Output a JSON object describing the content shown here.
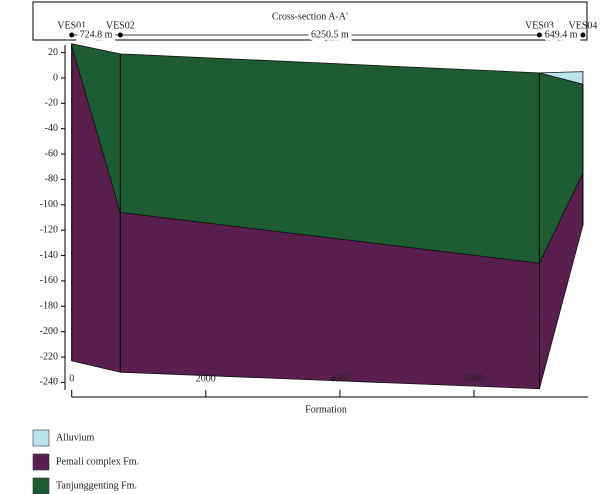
{
  "chart_data": {
    "type": "cross-section",
    "title": "Cross-section A-A′",
    "x_label": "Formation",
    "stations": {
      "names": [
        "VES01",
        "VES02",
        "VES03",
        "VES04"
      ],
      "x": [
        0,
        724.8,
        6975.3,
        7624.7
      ],
      "distances": [
        "724.8 m",
        "6250.5 m",
        "649.4 m"
      ]
    },
    "xlim": [
      -100,
      7700
    ],
    "ylim": [
      -246,
      26
    ],
    "xticks": [
      0,
      2000,
      4000,
      6000
    ],
    "yticks": [
      20,
      0,
      -20,
      -40,
      -60,
      -80,
      -100,
      -120,
      -140,
      -160,
      -180,
      -200,
      -220,
      -240
    ],
    "series": [
      {
        "name": "Alluvium",
        "color": "#b9e4ea",
        "x": [
          6975.3,
          7624.7
        ],
        "top": [
          4,
          5
        ],
        "bottom": [
          4,
          -5
        ]
      },
      {
        "name": "Pemali complex Fm.",
        "color": "#5a1f4f",
        "x": [
          0,
          724.8,
          6975.3,
          7624.7
        ],
        "top": [
          25,
          -106,
          -146,
          -75
        ],
        "bottom": [
          -223,
          -232,
          -245,
          -116
        ]
      },
      {
        "name": "Tanjunggenting Fm.",
        "color": "#1d5c33",
        "x": [
          0,
          724.8,
          6975.3,
          7624.7
        ],
        "top": [
          27,
          19,
          4,
          -5
        ],
        "bottom": [
          25,
          -106,
          -146,
          -75
        ]
      }
    ]
  }
}
